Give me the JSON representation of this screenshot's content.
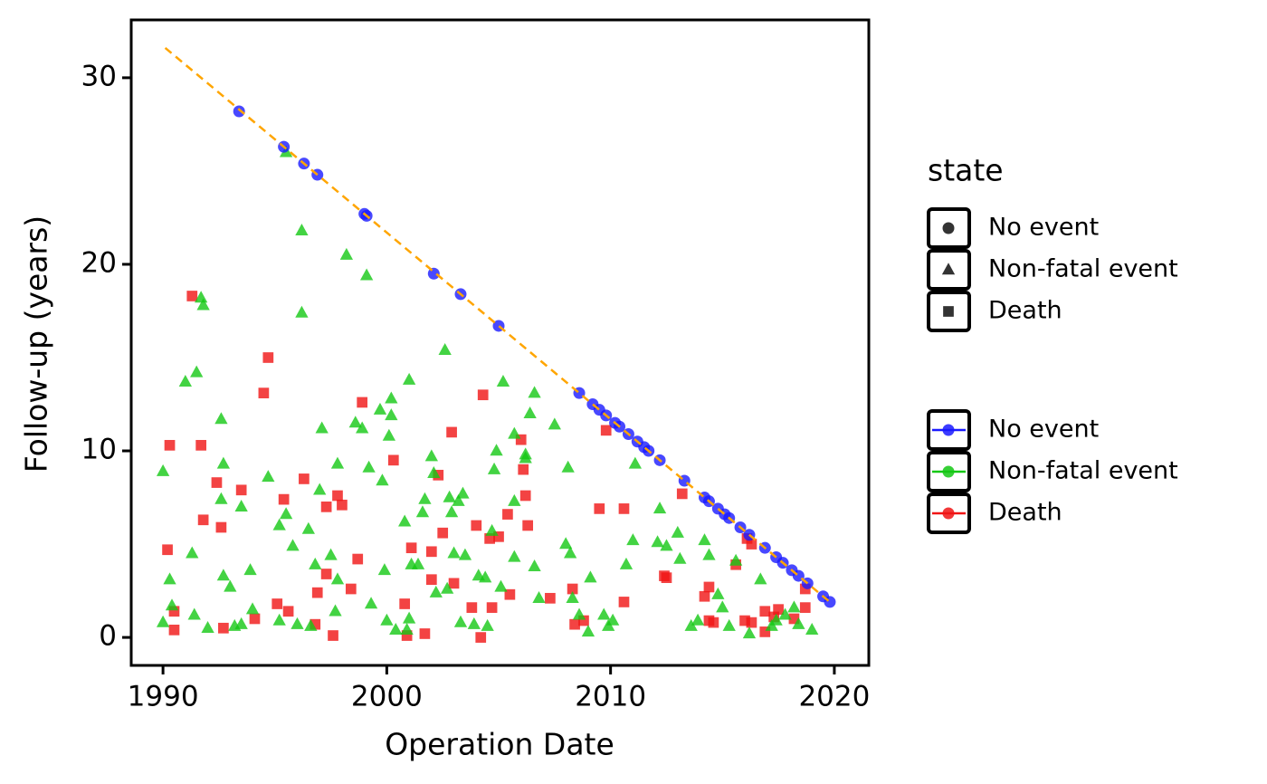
{
  "chart_data": {
    "type": "scatter",
    "x_label": "Operation Date",
    "y_label": "Follow-up (years)",
    "xlim": [
      1988.58,
      2021.54
    ],
    "ylim": [
      -1.5,
      33.1
    ],
    "xticks": [
      1990,
      2000,
      2010,
      2020
    ],
    "yticks": [
      0,
      10,
      20,
      30
    ],
    "reference_line": {
      "color": "orange",
      "x": [
        1990.1,
        2019.8
      ],
      "y": [
        31.6,
        1.9
      ]
    },
    "shape_legend": {
      "title": "state",
      "labels": [
        "No event",
        "Non-fatal event",
        "Death"
      ]
    },
    "series": [
      {
        "name": "No event",
        "color": "#1a1aff",
        "marker": "circle",
        "x": [
          1993.4,
          1995.4,
          1996.3,
          1996.9,
          1999,
          1999.1,
          2002.1,
          2003.3,
          2005,
          2008.6,
          2009.2,
          2009.5,
          2009.8,
          2010.2,
          2010.4,
          2010.8,
          2011.2,
          2011.5,
          2011.7,
          2012.2,
          2013.3,
          2014.2,
          2014.4,
          2014.8,
          2015.1,
          2015.3,
          2015.8,
          2016.2,
          2016.9,
          2017.4,
          2017.7,
          2018.1,
          2018.4,
          2018.8,
          2019.5,
          2019.8
        ],
        "y": [
          28.2,
          26.3,
          25.4,
          24.8,
          22.7,
          22.6,
          19.5,
          18.4,
          16.7,
          13.1,
          12.5,
          12.2,
          11.9,
          11.5,
          11.3,
          10.9,
          10.5,
          10.2,
          10,
          9.5,
          8.4,
          7.5,
          7.3,
          6.9,
          6.6,
          6.4,
          5.9,
          5.5,
          4.8,
          4.3,
          4.0,
          3.6,
          3.3,
          2.9,
          2.2,
          1.9
        ]
      },
      {
        "name": "Non-fatal event",
        "color": "#14c814",
        "marker": "triangle",
        "x": [
          1990,
          1990,
          1990.3,
          1990.4,
          1991,
          1991.3,
          1991.4,
          1991.5,
          1991.7,
          1991.8,
          1992,
          1992.6,
          1992.6,
          1992.7,
          1992.7,
          1993,
          1993.2,
          1993.5,
          1993.5,
          1993.9,
          1994,
          1994.7,
          1995.2,
          1995.2,
          1995.5,
          1995.5,
          1995.8,
          1996,
          1996.2,
          1996.2,
          1996.5,
          1996.6,
          1996.8,
          1997,
          1997.1,
          1997.5,
          1997.7,
          1997.8,
          1997.8,
          1998.2,
          1998.6,
          1998.9,
          1999.1,
          1999.2,
          1999.3,
          1999.7,
          1999.8,
          1999.9,
          2000,
          2000.1,
          2000.2,
          2000.2,
          2000.4,
          2000.8,
          2000.9,
          2001,
          2001,
          2001.1,
          2001.4,
          2001.6,
          2001.7,
          2002,
          2002.1,
          2002.2,
          2002.6,
          2002.7,
          2002.8,
          2002.9,
          2003,
          2003.2,
          2003.3,
          2003.4,
          2003.5,
          2003.9,
          2004.1,
          2004.4,
          2004.5,
          2004.7,
          2004.8,
          2004.9,
          2005.1,
          2005.2,
          2005.7,
          2005.7,
          2005.7,
          2006.2,
          2006.2,
          2006.4,
          2006.6,
          2006.6,
          2006.8,
          2007.5,
          2008,
          2008.1,
          2008.2,
          2008.3,
          2008.6,
          2009,
          2009.1,
          2009.7,
          2009.9,
          2010.1,
          2010.7,
          2011,
          2011.1,
          2012.1,
          2012.2,
          2012.5,
          2013,
          2013.1,
          2013.6,
          2013.9,
          2014.2,
          2014.4,
          2014.8,
          2015,
          2015.3,
          2015.6,
          2016.2,
          2016.7,
          2017.2,
          2017.4,
          2017.8,
          2018.2,
          2018.4,
          2019
        ],
        "y": [
          8.9,
          0.8,
          3.1,
          1.7,
          13.7,
          4.5,
          1.2,
          14.2,
          18.2,
          17.8,
          0.5,
          11.7,
          7.4,
          9.3,
          3.3,
          2.7,
          0.6,
          0.7,
          7.0,
          3.6,
          1.5,
          8.6,
          6.0,
          0.9,
          26.0,
          6.6,
          4.9,
          0.7,
          21.8,
          17.4,
          5.8,
          0.6,
          3.9,
          7.9,
          11.2,
          4.4,
          1.4,
          9.3,
          3.1,
          20.5,
          11.5,
          11.2,
          19.4,
          9.1,
          1.8,
          12.2,
          8.4,
          3.6,
          0.9,
          10.8,
          12.8,
          11.9,
          0.4,
          6.2,
          0.4,
          1.0,
          13.8,
          3.9,
          3.9,
          6.7,
          7.4,
          9.7,
          8.8,
          2.4,
          15.4,
          2.6,
          7.5,
          6.7,
          4.5,
          7.3,
          0.8,
          7.7,
          4.4,
          0.7,
          3.3,
          3.2,
          0.6,
          5.7,
          9.0,
          10.0,
          2.7,
          13.7,
          4.3,
          7.3,
          10.9,
          9.8,
          9.6,
          12.0,
          3.8,
          13.1,
          2.1,
          11.4,
          5.0,
          9.1,
          4.5,
          2.1,
          1.2,
          0.3,
          3.2,
          1.2,
          0.6,
          0.9,
          3.9,
          5.2,
          9.3,
          5.1,
          6.9,
          4.9,
          5.6,
          4.2,
          0.6,
          0.9,
          5.2,
          4.4,
          2.3,
          1.6,
          0.6,
          4.1,
          0.2,
          3.1,
          0.6,
          0.9,
          1.2,
          1.6,
          0.7,
          0.4
        ]
      },
      {
        "name": "Death",
        "color": "#f01414",
        "marker": "square",
        "x": [
          1990.2,
          1990.3,
          1990.5,
          1990.5,
          1991.3,
          1991.7,
          1991.8,
          1992.4,
          1992.6,
          1992.7,
          1993.5,
          1994.1,
          1994.5,
          1994.7,
          1995.1,
          1995.4,
          1995.6,
          1996.3,
          1996.8,
          1996.9,
          1997.3,
          1997.3,
          1997.6,
          1997.8,
          1998,
          1998.4,
          1998.7,
          1998.9,
          2000.3,
          2000.8,
          2000.9,
          2001.1,
          2001.7,
          2002,
          2002,
          2002.3,
          2002.5,
          2002.9,
          2003,
          2003.8,
          2004,
          2004.2,
          2004.3,
          2004.6,
          2004.7,
          2005,
          2005.4,
          2005.5,
          2006,
          2006.1,
          2006.2,
          2006.3,
          2007.3,
          2008.3,
          2008.4,
          2008.8,
          2009.5,
          2009.8,
          2010.6,
          2010.6,
          2012.4,
          2012.5,
          2013.2,
          2014.2,
          2014.4,
          2014.4,
          2014.6,
          2015.6,
          2016,
          2016.1,
          2016.3,
          2016.3,
          2016.9,
          2016.9,
          2017.3,
          2017.5,
          2018.2,
          2018.7,
          2018.7
        ],
        "y": [
          4.7,
          10.3,
          0.4,
          1.4,
          18.3,
          10.3,
          6.3,
          8.3,
          5.9,
          0.5,
          7.9,
          1.0,
          13.1,
          15.0,
          1.8,
          7.4,
          1.4,
          8.5,
          0.7,
          2.4,
          3.4,
          7.0,
          0.1,
          7.6,
          7.1,
          2.6,
          4.2,
          12.6,
          9.5,
          1.8,
          0.1,
          4.8,
          0.2,
          4.6,
          3.1,
          8.7,
          5.6,
          11.0,
          2.9,
          1.6,
          6.0,
          0.0,
          13.0,
          5.3,
          1.6,
          5.4,
          6.6,
          2.3,
          10.6,
          9.0,
          7.6,
          6.0,
          2.1,
          2.6,
          0.7,
          0.9,
          6.9,
          11.1,
          6.9,
          1.9,
          3.3,
          3.2,
          7.7,
          2.2,
          2.7,
          0.9,
          0.8,
          3.9,
          0.9,
          5.3,
          5.0,
          0.8,
          1.4,
          0.3,
          1.1,
          1.5,
          1.0,
          2.6,
          1.6
        ]
      }
    ]
  }
}
